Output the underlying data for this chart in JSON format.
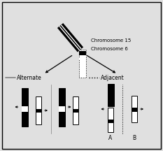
{
  "background_color": "#e0e0e0",
  "chromosome15_label": "Chromosome 15",
  "chromosome6_label": "Chromosome 6",
  "alternate_label": "Alternate",
  "adjacent_label": "Adjacent",
  "label_A": "A",
  "label_B": "B",
  "text_fontsize": 5.5,
  "small_fontsize": 5.0
}
